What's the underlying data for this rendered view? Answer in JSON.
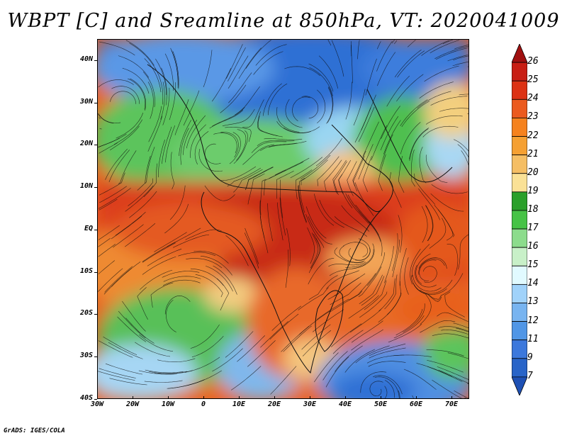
{
  "title": "WBPT [C] and Sreamline at 850hPa, VT: 2020041009",
  "footer": "GrADS: IGES/COLA",
  "map": {
    "lat_labels": [
      "40N",
      "30N",
      "20N",
      "10N",
      "EQ",
      "10S",
      "20S",
      "30S",
      "40S"
    ],
    "lat_values": [
      40,
      30,
      20,
      10,
      0,
      -10,
      -20,
      -30,
      -40
    ],
    "lon_labels": [
      "30W",
      "20W",
      "10W",
      "0",
      "10E",
      "20E",
      "30E",
      "40E",
      "50E",
      "60E",
      "70E"
    ],
    "lon_values": [
      -30,
      -20,
      -10,
      0,
      10,
      20,
      30,
      40,
      50,
      60,
      70
    ],
    "lon_range": [
      -30,
      75
    ],
    "lat_range": [
      -40,
      45
    ]
  },
  "colorbar": {
    "labels": [
      "26",
      "25",
      "24",
      "23",
      "22",
      "21",
      "20",
      "19",
      "18",
      "17",
      "16",
      "15",
      "14",
      "13",
      "12",
      "11",
      "9",
      "7"
    ],
    "colors": [
      "#a01010",
      "#c81e14",
      "#dc3214",
      "#eb5a1e",
      "#f5821e",
      "#f5a032",
      "#f5be64",
      "#fae196",
      "#2aa02a",
      "#46c346",
      "#8cdc8c",
      "#c8f0c8",
      "#e1faff",
      "#a0d2fa",
      "#78b4f0",
      "#5096e6",
      "#3c78dc",
      "#2864c8",
      "#1e50b4"
    ]
  },
  "colors": {
    "north_blue": "#2f6fd4",
    "mid_green": "#55c255",
    "tropic_red": "#d8381a",
    "orange": "#ef8a2a",
    "pale_yellow": "#f6d68a",
    "south_blue": "#6aa8ec"
  }
}
